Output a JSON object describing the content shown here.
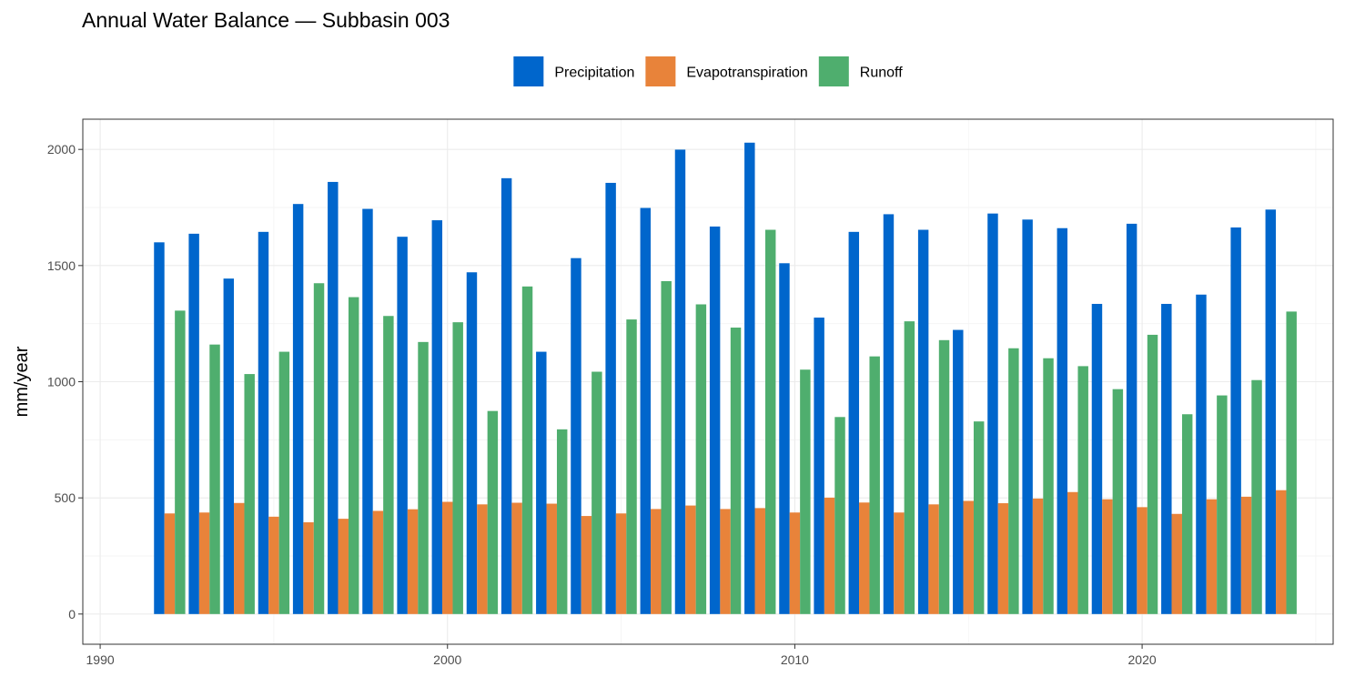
{
  "chart_data": {
    "type": "bar",
    "title": "Annual Water Balance — Subbasin 003",
    "xlabel": "",
    "ylabel": "mm/year",
    "xlim": [
      1989.5,
      2025.5
    ],
    "ylim": [
      -130,
      2130
    ],
    "x_ticks": [
      1990,
      2000,
      2010,
      2020
    ],
    "y_ticks": [
      0,
      500,
      1000,
      1500,
      2000
    ],
    "grid": true,
    "legend_position": "top",
    "categories": [
      1992,
      1993,
      1994,
      1995,
      1996,
      1997,
      1998,
      1999,
      2000,
      2001,
      2002,
      2003,
      2004,
      2005,
      2006,
      2007,
      2008,
      2009,
      2010,
      2011,
      2012,
      2013,
      2014,
      2015,
      2016,
      2017,
      2018,
      2019,
      2020,
      2021,
      2022,
      2023,
      2024
    ],
    "series": [
      {
        "name": "Precipitation",
        "color": "#0066CC",
        "values": [
          1600,
          1637,
          1444,
          1645,
          1765,
          1860,
          1744,
          1624,
          1695,
          1471,
          1876,
          1129,
          1532,
          1856,
          1748,
          1999,
          1668,
          2029,
          1510,
          1276,
          1645,
          1721,
          1654,
          1223,
          1724,
          1698,
          1661,
          1335,
          1680,
          1335,
          1375,
          1664,
          1741
        ]
      },
      {
        "name": "Evapotranspiration",
        "color": "#E8833A",
        "values": [
          433,
          437,
          478,
          419,
          395,
          410,
          444,
          451,
          483,
          472,
          479,
          475,
          422,
          433,
          452,
          467,
          452,
          456,
          437,
          501,
          480,
          437,
          472,
          487,
          477,
          497,
          525,
          494,
          460,
          431,
          494,
          505,
          533
        ]
      },
      {
        "name": "Runoff",
        "color": "#4FAE6E",
        "values": [
          1306,
          1160,
          1033,
          1129,
          1424,
          1364,
          1283,
          1171,
          1256,
          874,
          1410,
          795,
          1043,
          1268,
          1433,
          1333,
          1233,
          1654,
          1052,
          848,
          1109,
          1260,
          1179,
          829,
          1144,
          1101,
          1067,
          968,
          1202,
          860,
          941,
          1007,
          1302
        ]
      }
    ]
  }
}
